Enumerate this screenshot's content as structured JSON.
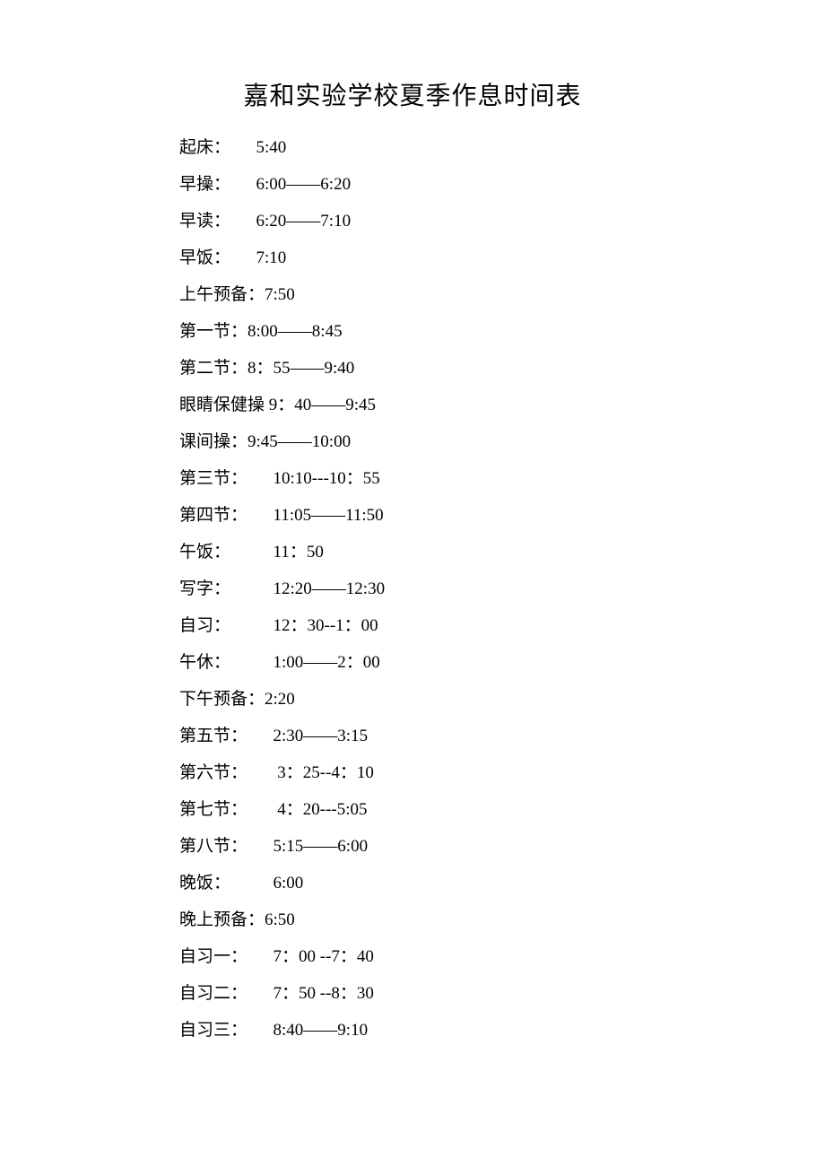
{
  "document": {
    "title": "嘉和实验学校夏季作息时间表",
    "background_color": "#ffffff",
    "text_color": "#000000",
    "title_fontsize": 28,
    "body_fontsize": 19,
    "rows": [
      {
        "label": "起床：",
        "spacer": "　　",
        "value": "5:40"
      },
      {
        "label": "早操：",
        "spacer": "　　",
        "value": "6:00——6:20"
      },
      {
        "label": "早读：",
        "spacer": "　　",
        "value": "6:20——7:10"
      },
      {
        "label": "早饭：",
        "spacer": "　　",
        "value": "7:10"
      },
      {
        "label": "上午预备：",
        "spacer": "",
        "value": "7:50"
      },
      {
        "label": "第一节：",
        "spacer": "",
        "value": "8:00——8:45"
      },
      {
        "label": "第二节：",
        "spacer": "",
        "value": "8：55——9:40"
      },
      {
        "label": "眼睛保健操",
        "spacer": "",
        "value": " 9：40——9:45"
      },
      {
        "label": "课间操：",
        "spacer": "",
        "value": "9:45——10:00"
      },
      {
        "label": "第三节：",
        "spacer": "　　",
        "value": "10:10---10：55"
      },
      {
        "label": "第四节：",
        "spacer": "　　",
        "value": "11:05——11:50"
      },
      {
        "label": "午饭：",
        "spacer": "　　　",
        "value": "11：50"
      },
      {
        "label": "写字：",
        "spacer": "　　　",
        "value": "12:20——12:30"
      },
      {
        "label": "自习：",
        "spacer": "　　　",
        "value": "12：30--1：00"
      },
      {
        "label": "午休：",
        "spacer": "　　　",
        "value": "1:00——2：00"
      },
      {
        "label": "下午预备：",
        "spacer": "",
        "value": "2:20"
      },
      {
        "label": "第五节：",
        "spacer": "　　",
        "value": "2:30——3:15"
      },
      {
        "label": "第六节：",
        "spacer": "　　 ",
        "value": "3：25--4：10"
      },
      {
        "label": "第七节：",
        "spacer": "　　 ",
        "value": "4：20---5:05"
      },
      {
        "label": "第八节：",
        "spacer": "　　",
        "value": "5:15——6:00"
      },
      {
        "label": "晚饭：",
        "spacer": "　　　",
        "value": "6:00"
      },
      {
        "label": "晚上预备：",
        "spacer": "",
        "value": "6:50"
      },
      {
        "label": "自习一：",
        "spacer": "　　",
        "value": "7：00 --7：40"
      },
      {
        "label": "自习二：",
        "spacer": "　　",
        "value": "7：50 --8：30"
      },
      {
        "label": "自习三：",
        "spacer": "　　",
        "value": "8:40——9:10"
      }
    ]
  }
}
